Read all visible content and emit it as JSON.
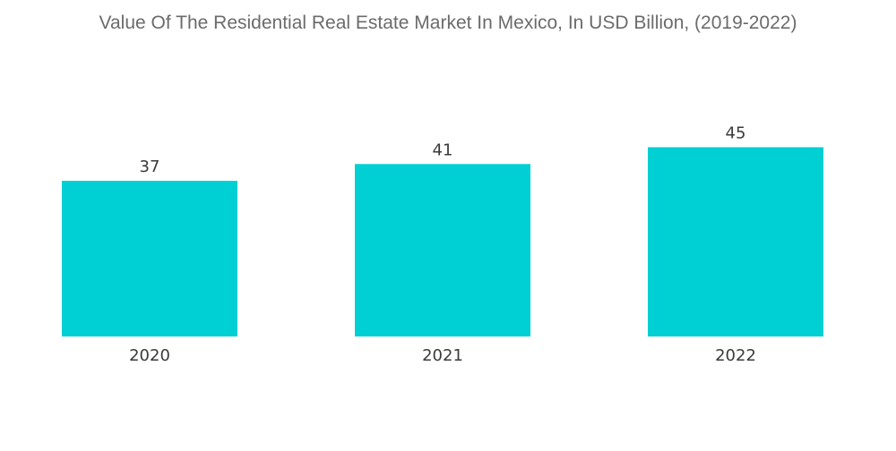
{
  "chart_data": {
    "type": "bar",
    "title": "Value Of The Residential Real Estate Market In Mexico, In USD Billion, (2019-2022)",
    "categories": [
      "2020",
      "2021",
      "2022"
    ],
    "values": [
      37,
      41,
      45
    ],
    "xlabel": "",
    "ylabel": "",
    "grid": false,
    "legend": "none",
    "bar_color": "#00cfd3"
  }
}
